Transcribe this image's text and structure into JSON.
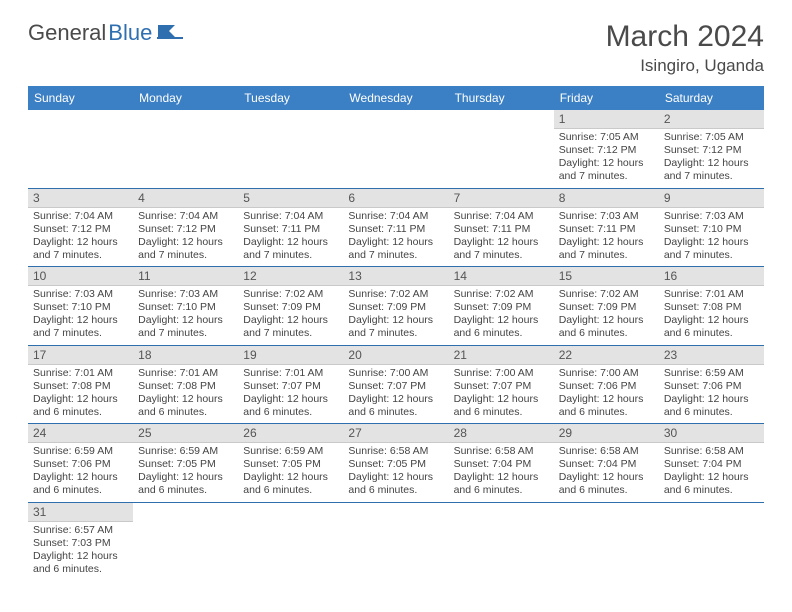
{
  "logo": {
    "part1": "General",
    "part2": "Blue"
  },
  "title": "March 2024",
  "location": "Isingiro, Uganda",
  "colors": {
    "header_bg": "#3b7fc4",
    "header_text": "#ffffff",
    "daynum_bg": "#e3e3e3",
    "row_border": "#2f6fb0",
    "text": "#444444",
    "logo_gray": "#4a4a4a",
    "logo_blue": "#2f6fb0"
  },
  "weekdays": [
    "Sunday",
    "Monday",
    "Tuesday",
    "Wednesday",
    "Thursday",
    "Friday",
    "Saturday"
  ],
  "weeks": [
    [
      null,
      null,
      null,
      null,
      null,
      {
        "n": "1",
        "sr": "7:05 AM",
        "ss": "7:12 PM",
        "dl": "12 hours and 7 minutes."
      },
      {
        "n": "2",
        "sr": "7:05 AM",
        "ss": "7:12 PM",
        "dl": "12 hours and 7 minutes."
      }
    ],
    [
      {
        "n": "3",
        "sr": "7:04 AM",
        "ss": "7:12 PM",
        "dl": "12 hours and 7 minutes."
      },
      {
        "n": "4",
        "sr": "7:04 AM",
        "ss": "7:12 PM",
        "dl": "12 hours and 7 minutes."
      },
      {
        "n": "5",
        "sr": "7:04 AM",
        "ss": "7:11 PM",
        "dl": "12 hours and 7 minutes."
      },
      {
        "n": "6",
        "sr": "7:04 AM",
        "ss": "7:11 PM",
        "dl": "12 hours and 7 minutes."
      },
      {
        "n": "7",
        "sr": "7:04 AM",
        "ss": "7:11 PM",
        "dl": "12 hours and 7 minutes."
      },
      {
        "n": "8",
        "sr": "7:03 AM",
        "ss": "7:11 PM",
        "dl": "12 hours and 7 minutes."
      },
      {
        "n": "9",
        "sr": "7:03 AM",
        "ss": "7:10 PM",
        "dl": "12 hours and 7 minutes."
      }
    ],
    [
      {
        "n": "10",
        "sr": "7:03 AM",
        "ss": "7:10 PM",
        "dl": "12 hours and 7 minutes."
      },
      {
        "n": "11",
        "sr": "7:03 AM",
        "ss": "7:10 PM",
        "dl": "12 hours and 7 minutes."
      },
      {
        "n": "12",
        "sr": "7:02 AM",
        "ss": "7:09 PM",
        "dl": "12 hours and 7 minutes."
      },
      {
        "n": "13",
        "sr": "7:02 AM",
        "ss": "7:09 PM",
        "dl": "12 hours and 7 minutes."
      },
      {
        "n": "14",
        "sr": "7:02 AM",
        "ss": "7:09 PM",
        "dl": "12 hours and 6 minutes."
      },
      {
        "n": "15",
        "sr": "7:02 AM",
        "ss": "7:09 PM",
        "dl": "12 hours and 6 minutes."
      },
      {
        "n": "16",
        "sr": "7:01 AM",
        "ss": "7:08 PM",
        "dl": "12 hours and 6 minutes."
      }
    ],
    [
      {
        "n": "17",
        "sr": "7:01 AM",
        "ss": "7:08 PM",
        "dl": "12 hours and 6 minutes."
      },
      {
        "n": "18",
        "sr": "7:01 AM",
        "ss": "7:08 PM",
        "dl": "12 hours and 6 minutes."
      },
      {
        "n": "19",
        "sr": "7:01 AM",
        "ss": "7:07 PM",
        "dl": "12 hours and 6 minutes."
      },
      {
        "n": "20",
        "sr": "7:00 AM",
        "ss": "7:07 PM",
        "dl": "12 hours and 6 minutes."
      },
      {
        "n": "21",
        "sr": "7:00 AM",
        "ss": "7:07 PM",
        "dl": "12 hours and 6 minutes."
      },
      {
        "n": "22",
        "sr": "7:00 AM",
        "ss": "7:06 PM",
        "dl": "12 hours and 6 minutes."
      },
      {
        "n": "23",
        "sr": "6:59 AM",
        "ss": "7:06 PM",
        "dl": "12 hours and 6 minutes."
      }
    ],
    [
      {
        "n": "24",
        "sr": "6:59 AM",
        "ss": "7:06 PM",
        "dl": "12 hours and 6 minutes."
      },
      {
        "n": "25",
        "sr": "6:59 AM",
        "ss": "7:05 PM",
        "dl": "12 hours and 6 minutes."
      },
      {
        "n": "26",
        "sr": "6:59 AM",
        "ss": "7:05 PM",
        "dl": "12 hours and 6 minutes."
      },
      {
        "n": "27",
        "sr": "6:58 AM",
        "ss": "7:05 PM",
        "dl": "12 hours and 6 minutes."
      },
      {
        "n": "28",
        "sr": "6:58 AM",
        "ss": "7:04 PM",
        "dl": "12 hours and 6 minutes."
      },
      {
        "n": "29",
        "sr": "6:58 AM",
        "ss": "7:04 PM",
        "dl": "12 hours and 6 minutes."
      },
      {
        "n": "30",
        "sr": "6:58 AM",
        "ss": "7:04 PM",
        "dl": "12 hours and 6 minutes."
      }
    ],
    [
      {
        "n": "31",
        "sr": "6:57 AM",
        "ss": "7:03 PM",
        "dl": "12 hours and 6 minutes."
      },
      null,
      null,
      null,
      null,
      null,
      null
    ]
  ],
  "labels": {
    "sunrise": "Sunrise:",
    "sunset": "Sunset:",
    "daylight": "Daylight:"
  }
}
